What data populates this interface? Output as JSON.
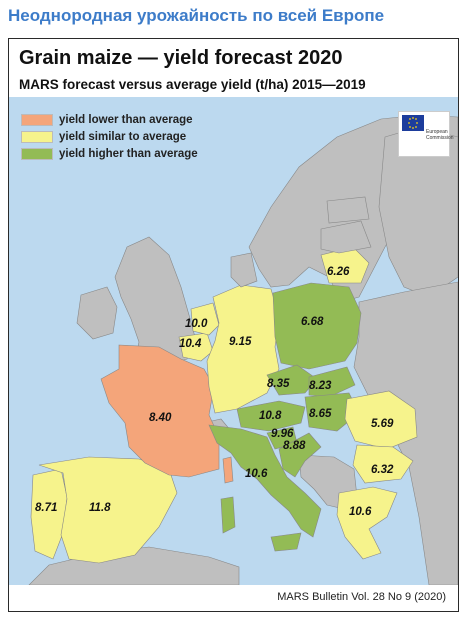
{
  "headline": "Неоднородная урожайность по всей Европе",
  "map": {
    "title": "Grain maize — yield forecast 2020",
    "subtitle": "MARS forecast versus average yield (t/ha) 2015—2019",
    "source": "MARS Bulletin Vol. 28 No 9 (2020)",
    "colors": {
      "lower": "#f4a57a",
      "similar": "#f6f38c",
      "higher": "#93bb55",
      "other": "#bfbfbf",
      "sea": "#bcd9ef"
    },
    "legend": [
      {
        "label": "yield lower than average",
        "color": "#f4a57a"
      },
      {
        "label": "yield similar to average",
        "color": "#f6f38c"
      },
      {
        "label": "yield higher than average",
        "color": "#93bb55"
      }
    ],
    "flag_text": "European Commission",
    "regions": [
      {
        "name": "Lithuania",
        "category": "similar",
        "value": "6.26"
      },
      {
        "name": "Netherlands",
        "category": "similar",
        "value": "10.0"
      },
      {
        "name": "Belgium",
        "category": "similar",
        "value": "10.4"
      },
      {
        "name": "Germany",
        "category": "similar",
        "value": "9.15"
      },
      {
        "name": "Poland",
        "category": "higher",
        "value": "6.68"
      },
      {
        "name": "Czechia",
        "category": "higher",
        "value": "8.35"
      },
      {
        "name": "Slovakia",
        "category": "higher",
        "value": "8.23"
      },
      {
        "name": "Austria",
        "category": "higher",
        "value": "10.8"
      },
      {
        "name": "Hungary",
        "category": "higher",
        "value": "8.65"
      },
      {
        "name": "Slovenia",
        "category": "higher",
        "value": "9.96"
      },
      {
        "name": "Croatia",
        "category": "higher",
        "value": "8.88"
      },
      {
        "name": "France",
        "category": "lower",
        "value": "8.40"
      },
      {
        "name": "Italy",
        "category": "higher",
        "value": "10.6"
      },
      {
        "name": "Romania",
        "category": "similar",
        "value": "5.69"
      },
      {
        "name": "Bulgaria",
        "category": "similar",
        "value": "6.32"
      },
      {
        "name": "Greece",
        "category": "similar",
        "value": "10.6"
      },
      {
        "name": "Portugal",
        "category": "similar",
        "value": "8.71"
      },
      {
        "name": "Spain",
        "category": "similar",
        "value": "11.8"
      }
    ]
  }
}
